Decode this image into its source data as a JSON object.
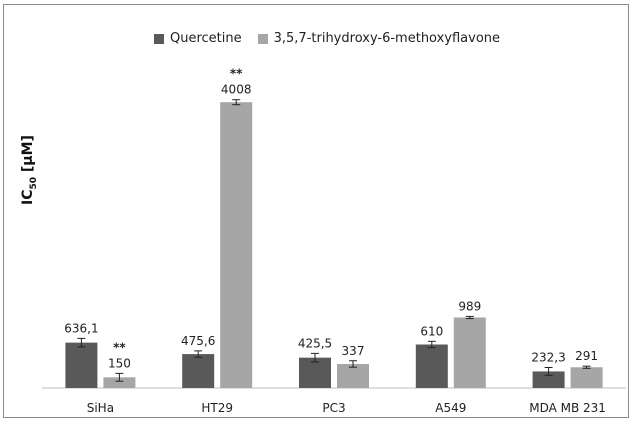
{
  "chart_data": {
    "type": "bar",
    "categories": [
      "SiHa",
      "HT29",
      "PC3",
      "A549",
      "MDA MB 231"
    ],
    "series": [
      {
        "name": "Quercetine",
        "color": "#595959",
        "values": [
          636.1,
          475.6,
          425.5,
          610,
          232.3
        ],
        "labels": [
          "636,1",
          "475,6",
          "425,5",
          "610",
          "232,3"
        ],
        "errors": [
          60,
          45,
          60,
          45,
          55
        ],
        "sig": [
          "",
          "",
          "",
          "",
          ""
        ]
      },
      {
        "name": "3,5,7-trihydroxy-6-methoxyflavone",
        "color": "#a6a6a6",
        "values": [
          150,
          4008,
          337,
          989,
          291
        ],
        "labels": [
          "150",
          "4008",
          "337",
          "989",
          "291"
        ],
        "errors": [
          55,
          35,
          45,
          15,
          15
        ],
        "sig": [
          "**",
          "**",
          "",
          "",
          ""
        ]
      }
    ],
    "ylabel_main": "IC",
    "ylabel_sub": "50",
    "ylabel_unit": " [µM]",
    "ylim": [
      0,
      4600
    ],
    "legend": "top"
  }
}
